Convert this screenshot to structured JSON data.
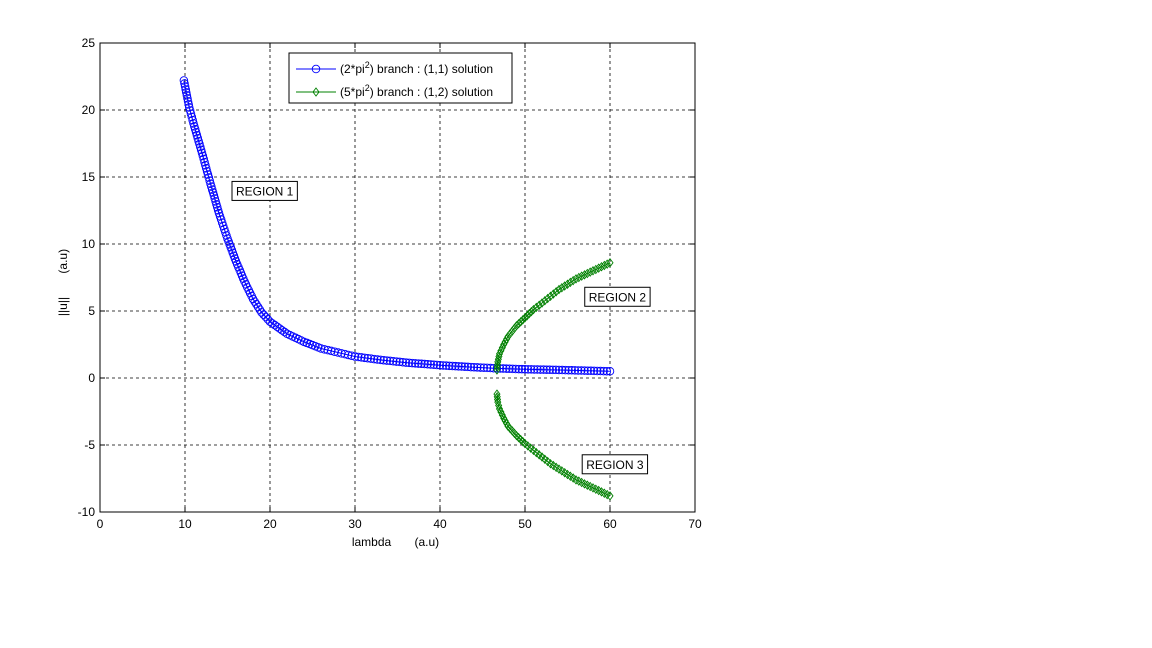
{
  "chart_data": {
    "type": "line",
    "title": "",
    "xlabel": "lambda       (a.u)",
    "ylabel": "||u||       (a.u)",
    "xlim": [
      0,
      70
    ],
    "ylim": [
      -10,
      25
    ],
    "xticks": [
      0,
      10,
      20,
      30,
      40,
      50,
      60,
      70
    ],
    "yticks": [
      -10,
      -5,
      0,
      5,
      10,
      15,
      20,
      25
    ],
    "grid": true,
    "legend": {
      "position": "top-center",
      "entries": [
        {
          "pre": "(2*pi",
          "sup": "2",
          "post": ") branch : (1,1) solution"
        },
        {
          "pre": "(5*pi",
          "sup": "2",
          "post": ") branch : (1,2) solution"
        }
      ]
    },
    "series": [
      {
        "name": "(2*pi^2) branch : (1,1) solution",
        "color": "#0000ff",
        "marker": "circle",
        "x": [
          9.87,
          10.5,
          11,
          12,
          13,
          14,
          15,
          16,
          17,
          18,
          19,
          20,
          22,
          24,
          26,
          28,
          30,
          33,
          36,
          40,
          44,
          46.7,
          50,
          54,
          57,
          60
        ],
        "y": [
          22.2,
          20.2,
          19.0,
          16.8,
          14.5,
          12.3,
          10.4,
          8.7,
          7.2,
          5.9,
          4.9,
          4.2,
          3.3,
          2.7,
          2.2,
          1.9,
          1.6,
          1.35,
          1.15,
          0.95,
          0.8,
          0.72,
          0.65,
          0.6,
          0.55,
          0.5
        ]
      },
      {
        "name": "(5*pi^2) branch : (1,2) solution",
        "color": "#008000",
        "marker": "diamond",
        "x": [
          46.7,
          46.8,
          47,
          47.5,
          48,
          49,
          50,
          51,
          52,
          53,
          54,
          55,
          56,
          57,
          58,
          59,
          60,
          46.7,
          46.8,
          47,
          47.5,
          48,
          49,
          50,
          51,
          52,
          53,
          54,
          55,
          56,
          57,
          58,
          59,
          60
        ],
        "y": [
          0.6,
          1.2,
          1.8,
          2.5,
          3.1,
          3.9,
          4.5,
          5.1,
          5.6,
          6.1,
          6.6,
          7.0,
          7.4,
          7.7,
          8.0,
          8.3,
          8.6,
          -1.2,
          -1.8,
          -2.3,
          -3.0,
          -3.6,
          -4.3,
          -4.9,
          -5.4,
          -5.9,
          -6.4,
          -6.8,
          -7.2,
          -7.6,
          -7.9,
          -8.2,
          -8.5,
          -8.8
        ]
      }
    ],
    "annotations": [
      {
        "text": "REGION 1",
        "x": 16,
        "y": 13.7
      },
      {
        "text": "REGION 2",
        "x": 57.5,
        "y": 5.8
      },
      {
        "text": "REGION 3",
        "x": 57.2,
        "y": -6.7
      }
    ]
  }
}
